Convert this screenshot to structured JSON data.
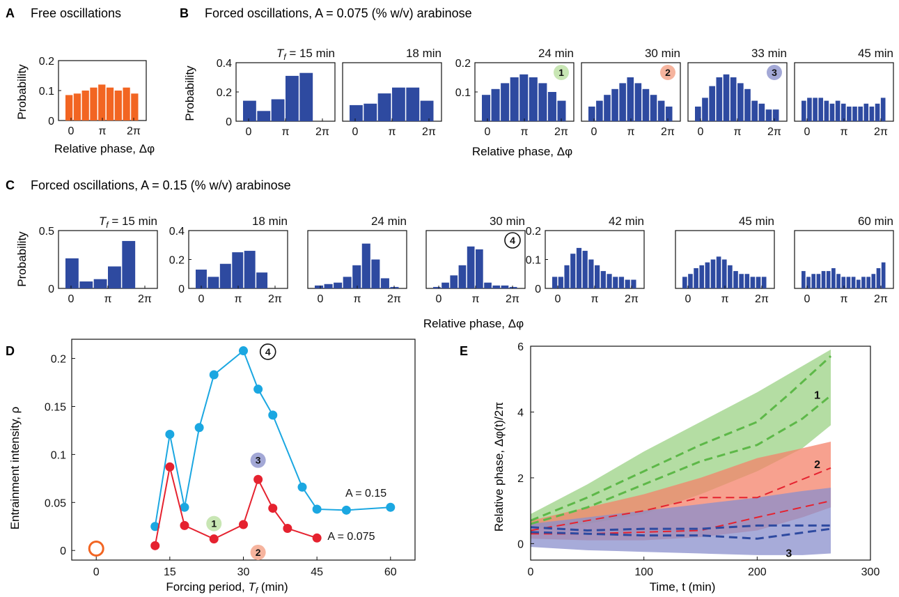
{
  "panel_labels": {
    "A": "A",
    "B": "B",
    "C": "C",
    "D": "D",
    "E": "E"
  },
  "panelA": {
    "title": "Free oscillations",
    "ylabel": "Probability",
    "xlabel": "Relative phase, Δφ",
    "yticks": [
      "0",
      "0.1",
      "0.2"
    ],
    "xticks": [
      "0",
      "π",
      "2π"
    ],
    "color": "#f26522"
  },
  "panelB": {
    "title": "Forced oscillations, A = 0.075 (% w/v) arabinose",
    "ylabel": "Probability",
    "xlabel": "Relative phase, Δφ",
    "tf_prefix": "T",
    "tf_sub": "f",
    "tf_eq": " = 15 min",
    "xticks": [
      "0",
      "π",
      "2π"
    ],
    "color": "#2e4aa0"
  },
  "panelC": {
    "title": "Forced oscillations, A = 0.15 (% w/v) arabinose",
    "ylabel": "Probability",
    "xlabel": "Relative phase, Δφ",
    "xticks": [
      "0",
      "π",
      "2π"
    ],
    "color": "#2e4aa0"
  },
  "panelD": {
    "ylabel": "Entrainment intensity, ρ",
    "xlabel_pre": "Forcing period, ",
    "xlabel_T": "T",
    "xlabel_sub": "f",
    "xlabel_post": " (min)",
    "series_labels": [
      "A = 0.15",
      "A = 0.075"
    ]
  },
  "panelE": {
    "ylabel": "Relative phase, Δφ(t)/2π",
    "xlabel": "Time, t (min)",
    "curve_labels": [
      "1",
      "2",
      "3"
    ]
  },
  "markers": {
    "m1": "1",
    "m2": "2",
    "m3": "3",
    "m4": "4"
  },
  "chart_data": [
    {
      "panel": "A",
      "type": "bar",
      "title": "Free oscillations",
      "ylim": [
        0,
        0.2
      ],
      "yticks": [
        0,
        0.1,
        0.2
      ],
      "values": [
        0.085,
        0.09,
        0.1,
        0.11,
        0.12,
        0.11,
        0.1,
        0.11,
        0.09
      ]
    },
    {
      "panel": "B",
      "type": "bar",
      "subplots": [
        {
          "label": "= 15 min",
          "ylim": [
            0,
            0.4
          ],
          "yticks": [
            0,
            0.2,
            0.4
          ],
          "values": [
            0.14,
            0.07,
            0.15,
            0.31,
            0.33,
            0
          ]
        },
        {
          "label": "18 min",
          "ylim": [
            0,
            0.4
          ],
          "values": [
            0.11,
            0.12,
            0.19,
            0.23,
            0.23,
            0.14
          ]
        },
        {
          "label": "24 min",
          "ylim": [
            0,
            0.2
          ],
          "yticks": [
            0.1,
            0.2
          ],
          "marker": "1",
          "values": [
            0.09,
            0.11,
            0.13,
            0.15,
            0.16,
            0.15,
            0.13,
            0.1,
            0.07
          ]
        },
        {
          "label": "30 min",
          "ylim": [
            0,
            0.2
          ],
          "marker": "2",
          "values": [
            0.05,
            0.07,
            0.09,
            0.11,
            0.13,
            0.15,
            0.13,
            0.11,
            0.09,
            0.07,
            0.05
          ]
        },
        {
          "label": "33 min",
          "ylim": [
            0,
            0.2
          ],
          "marker": "3",
          "values": [
            0.05,
            0.08,
            0.12,
            0.15,
            0.16,
            0.15,
            0.13,
            0.11,
            0.07,
            0.06,
            0.04,
            0.04
          ]
        },
        {
          "label": "45 min",
          "ylim": [
            0,
            0.2
          ],
          "values": [
            0.07,
            0.08,
            0.08,
            0.08,
            0.07,
            0.06,
            0.07,
            0.06,
            0.05,
            0.05,
            0.05,
            0.06,
            0.05,
            0.06,
            0.08
          ]
        }
      ]
    },
    {
      "panel": "C",
      "type": "bar",
      "subplots": [
        {
          "label": "= 15 min",
          "ylim": [
            0,
            0.5
          ],
          "yticks": [
            0,
            0.5
          ],
          "values": [
            0.26,
            0.06,
            0.08,
            0.19,
            0.41,
            0
          ]
        },
        {
          "label": "18 min",
          "ylim": [
            0,
            0.4
          ],
          "yticks": [
            0,
            0.2,
            0.4
          ],
          "values": [
            0.13,
            0.08,
            0.17,
            0.25,
            0.26,
            0.11,
            0
          ]
        },
        {
          "label": "24 min",
          "ylim": [
            0,
            0.4
          ],
          "values": [
            0.02,
            0.03,
            0.04,
            0.08,
            0.16,
            0.31,
            0.2,
            0.07,
            0.01
          ]
        },
        {
          "label": "30 min",
          "ylim": [
            0,
            0.4
          ],
          "marker": "4",
          "values": [
            0.01,
            0.04,
            0.09,
            0.16,
            0.29,
            0.27,
            0.04,
            0.02,
            0.02,
            0.01
          ]
        },
        {
          "label": "42 min",
          "ylim": [
            0,
            0.2
          ],
          "yticks": [
            0,
            0.1,
            0.2
          ],
          "values": [
            0.04,
            0.04,
            0.08,
            0.12,
            0.14,
            0.13,
            0.1,
            0.08,
            0.06,
            0.05,
            0.04,
            0.04,
            0.03,
            0.03
          ]
        },
        {
          "label": "45 min",
          "ylim": [
            0,
            0.2
          ],
          "values": [
            0.04,
            0.05,
            0.07,
            0.08,
            0.09,
            0.1,
            0.11,
            0.1,
            0.08,
            0.06,
            0.05,
            0.05,
            0.04,
            0.04,
            0.04
          ]
        },
        {
          "label": "60 min",
          "ylim": [
            0,
            0.2
          ],
          "values": [
            0.06,
            0.04,
            0.05,
            0.05,
            0.06,
            0.06,
            0.07,
            0.05,
            0.04,
            0.04,
            0.04,
            0.03,
            0.04,
            0.04,
            0.05,
            0.07,
            0.09
          ]
        }
      ]
    },
    {
      "panel": "D",
      "type": "line",
      "xlim": [
        -5,
        65
      ],
      "ylim": [
        -0.01,
        0.22
      ],
      "xticks": [
        0,
        15,
        30,
        45,
        60
      ],
      "yticks": [
        0,
        0.05,
        0.1,
        0.15,
        0.2
      ],
      "series": [
        {
          "name": "A = 0.15",
          "color": "#1ba7e1",
          "x": [
            12,
            15,
            18,
            21,
            24,
            30,
            33,
            36,
            42,
            45,
            51,
            60
          ],
          "y": [
            0.025,
            0.121,
            0.045,
            0.128,
            0.183,
            0.208,
            0.168,
            0.141,
            0.066,
            0.043,
            0.042,
            0.045
          ]
        },
        {
          "name": "A = 0.075",
          "color": "#e5222f",
          "x": [
            12,
            15,
            18,
            24,
            30,
            33,
            36,
            39,
            45
          ],
          "y": [
            0.005,
            0.087,
            0.026,
            0.012,
            0.027,
            0.074,
            0.044,
            0.023,
            0.013
          ]
        },
        {
          "name": "",
          "color": "#f26522",
          "x": [
            0
          ],
          "y": [
            0.002
          ]
        }
      ],
      "annotations": [
        {
          "text": "1",
          "x": 24,
          "y": 0.028
        },
        {
          "text": "2",
          "x": 33,
          "y": -0.002
        },
        {
          "text": "3",
          "x": 33,
          "y": 0.094
        },
        {
          "text": "4",
          "x": 35,
          "y": 0.207
        }
      ]
    },
    {
      "panel": "E",
      "type": "area",
      "xlim": [
        0,
        300
      ],
      "ylim": [
        -0.5,
        6
      ],
      "xticks": [
        0,
        100,
        200,
        300
      ],
      "yticks": [
        0,
        2,
        4,
        6
      ],
      "bands": [
        {
          "label": "1",
          "color": "#9bd184",
          "x": [
            0,
            50,
            100,
            150,
            200,
            240,
            265
          ],
          "lower": [
            0.45,
            0.6,
            0.9,
            1.5,
            2.2,
            2.9,
            3.6
          ],
          "upper": [
            0.9,
            1.8,
            2.8,
            3.7,
            4.6,
            5.4,
            5.9
          ]
        },
        {
          "label": "2",
          "color": "#f4826a",
          "x": [
            0,
            50,
            100,
            150,
            200,
            240,
            265
          ],
          "lower": [
            0.15,
            0.1,
            0.1,
            0.2,
            0.4,
            0.8,
            1.1
          ],
          "upper": [
            0.7,
            1.1,
            1.5,
            2.0,
            2.6,
            2.9,
            3.1
          ]
        },
        {
          "label": "3",
          "color": "#8a8fcc",
          "x": [
            0,
            50,
            100,
            150,
            200,
            240,
            265
          ],
          "lower": [
            -0.1,
            -0.2,
            -0.25,
            -0.3,
            -0.35,
            -0.35,
            -0.3
          ],
          "upper": [
            0.6,
            0.8,
            1.0,
            1.2,
            1.4,
            1.6,
            1.7
          ]
        }
      ],
      "lines": [
        {
          "color": "#5db848",
          "x": [
            0,
            50,
            100,
            150,
            200,
            230,
            265
          ],
          "y": [
            0.7,
            1.4,
            2.2,
            3.0,
            3.7,
            4.6,
            5.7
          ]
        },
        {
          "color": "#5db848",
          "x": [
            0,
            50,
            100,
            150,
            200,
            240,
            265
          ],
          "y": [
            0.6,
            1.1,
            1.8,
            2.5,
            3.0,
            3.8,
            4.5
          ]
        },
        {
          "color": "#e5222f",
          "x": [
            0,
            50,
            100,
            150,
            200,
            265
          ],
          "y": [
            0.4,
            0.7,
            1.0,
            1.4,
            1.4,
            2.3
          ]
        },
        {
          "color": "#e5222f",
          "x": [
            0,
            50,
            100,
            150,
            200,
            265
          ],
          "y": [
            0.3,
            0.3,
            0.35,
            0.4,
            0.8,
            1.3
          ]
        },
        {
          "color": "#2e4aa0",
          "x": [
            0,
            50,
            100,
            150,
            200,
            265
          ],
          "y": [
            0.5,
            0.4,
            0.45,
            0.45,
            0.55,
            0.55
          ]
        },
        {
          "color": "#2e4aa0",
          "x": [
            0,
            50,
            100,
            150,
            200,
            265
          ],
          "y": [
            0.35,
            0.3,
            0.25,
            0.25,
            0.15,
            0.45
          ]
        }
      ]
    }
  ]
}
